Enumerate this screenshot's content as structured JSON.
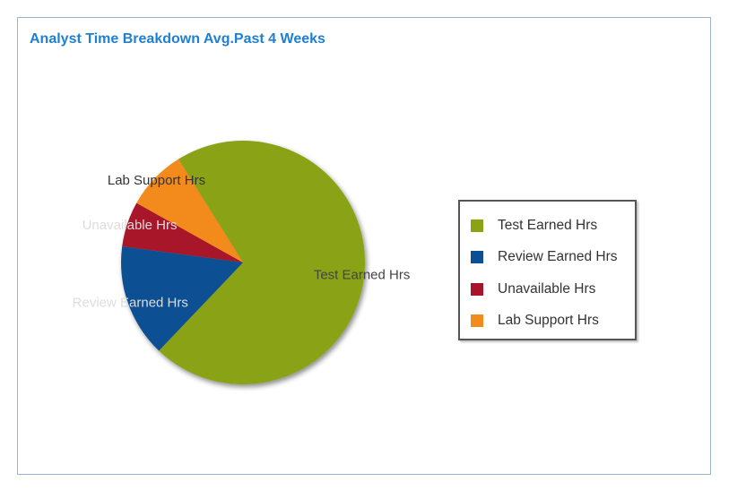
{
  "panel": {
    "title": "Analyst Time Breakdown Avg.Past 4 Weeks"
  },
  "chart_data": {
    "type": "pie",
    "title": "Analyst Time Breakdown Avg.Past 4 Weeks",
    "legend_position": "right",
    "slices": [
      {
        "name": "Test Earned Hrs",
        "value": 71,
        "color": "#8aa314"
      },
      {
        "name": "Review Earned Hrs",
        "value": 15,
        "color": "#0c4f93"
      },
      {
        "name": "Unavailable Hrs",
        "value": 6,
        "color": "#a8142a"
      },
      {
        "name": "Lab Support Hrs",
        "value": 8,
        "color": "#f28a1c"
      }
    ]
  }
}
